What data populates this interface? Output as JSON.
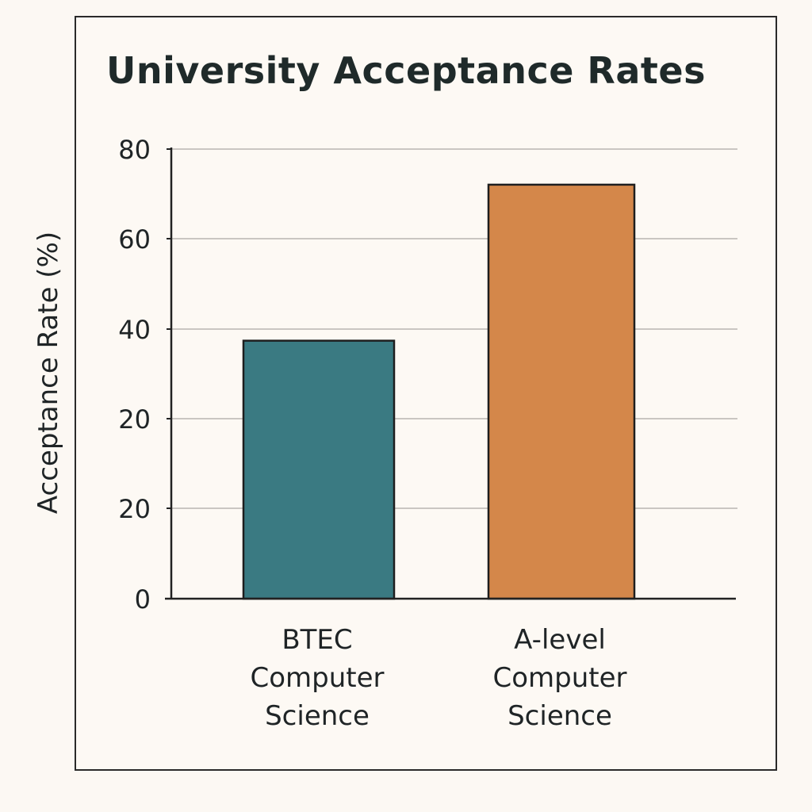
{
  "chart_data": {
    "type": "bar",
    "title": "University Acceptance Rates",
    "ylabel": "Acceptance Rate (%)",
    "xlabel": "",
    "categories": [
      [
        "BTEC",
        "Computer",
        "Science"
      ],
      [
        "A-level",
        "Computer",
        "Science"
      ]
    ],
    "values": [
      43,
      69
    ],
    "colors": [
      "#3a7a82",
      "#d4874a"
    ],
    "ylim": [
      0,
      80
    ],
    "yticks": [
      {
        "value": 0,
        "label": "0"
      },
      {
        "value": 20,
        "label": "20"
      },
      {
        "value": 40,
        "label": "40"
      },
      {
        "value": 60,
        "label": "60"
      },
      {
        "value": 80,
        "label": "80"
      }
    ],
    "extra_ytick": {
      "value": 60,
      "label": "20",
      "at": 20
    },
    "grid": true,
    "legend": "none"
  }
}
